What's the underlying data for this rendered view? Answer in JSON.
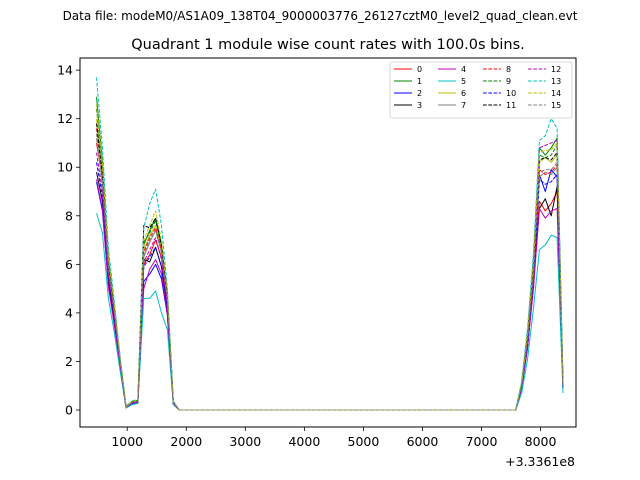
{
  "chart_data": {
    "type": "line",
    "suptitle": "Data file: modeM0/AS1A09_138T04_9000003776_26127cztM0_level2_quad_clean.evt",
    "title": "Quadrant 1 module wise count rates with 100.0s bins.",
    "xlabel": "",
    "ylabel": "",
    "x_offset_label": "+3.3361e8",
    "xlim": [
      200,
      8600
    ],
    "ylim": [
      -0.7,
      14.5
    ],
    "xticks": [
      1000,
      2000,
      3000,
      4000,
      5000,
      6000,
      7000,
      8000
    ],
    "yticks": [
      0,
      2,
      4,
      6,
      8,
      10,
      12,
      14
    ],
    "grid": false,
    "legend_placement": "upper-right",
    "legend_columns": 4,
    "x": [
      480,
      580,
      680,
      780,
      880,
      980,
      1080,
      1180,
      1280,
      1380,
      1480,
      1580,
      1680,
      1780,
      1880,
      7580,
      7680,
      7780,
      7880,
      7980,
      8080,
      8180,
      8280,
      8380
    ],
    "series": [
      {
        "name": "0",
        "color": "#ff0000",
        "dash": "solid",
        "values": [
          11.0,
          9.5,
          6.0,
          4.0,
          2.0,
          0.1,
          0.3,
          0.35,
          6.0,
          6.4,
          7.0,
          6.3,
          4.4,
          0.3,
          0,
          0,
          1.0,
          2.8,
          5.3,
          8.6,
          8.2,
          8.5,
          9.0,
          1.0
        ]
      },
      {
        "name": "1",
        "color": "#008000",
        "dash": "solid",
        "values": [
          12.9,
          10.2,
          6.3,
          4.3,
          2.1,
          0.15,
          0.35,
          0.4,
          6.8,
          7.4,
          7.9,
          6.8,
          4.8,
          0.35,
          0,
          0,
          1.1,
          3.2,
          6.2,
          10.8,
          10.5,
          10.8,
          11.2,
          1.2
        ]
      },
      {
        "name": "2",
        "color": "#0000ff",
        "dash": "solid",
        "values": [
          9.4,
          8.2,
          5.2,
          3.6,
          1.8,
          0.1,
          0.25,
          0.3,
          5.3,
          5.6,
          6.0,
          5.4,
          3.9,
          0.25,
          0,
          0,
          0.9,
          2.6,
          5.3,
          9.7,
          9.0,
          9.9,
          9.6,
          0.9
        ]
      },
      {
        "name": "3",
        "color": "#000000",
        "dash": "solid",
        "values": [
          9.8,
          8.6,
          5.4,
          3.7,
          1.9,
          0.1,
          0.28,
          0.32,
          6.2,
          6.1,
          6.7,
          5.9,
          4.1,
          0.28,
          0,
          0,
          0.95,
          2.6,
          5.2,
          8.3,
          8.7,
          8.0,
          9.2,
          0.95
        ]
      },
      {
        "name": "4",
        "color": "#c000c0",
        "dash": "solid",
        "values": [
          9.5,
          8.3,
          5.1,
          3.5,
          1.8,
          0.1,
          0.25,
          0.3,
          5.0,
          5.8,
          6.2,
          5.6,
          3.9,
          0.25,
          0,
          0,
          0.9,
          2.6,
          5.0,
          8.3,
          7.9,
          8.2,
          8.3,
          0.9
        ]
      },
      {
        "name": "5",
        "color": "#00bfbf",
        "dash": "solid",
        "values": [
          8.1,
          7.3,
          4.6,
          3.2,
          1.6,
          0.08,
          0.22,
          0.27,
          4.6,
          4.6,
          4.9,
          4.0,
          3.3,
          0.22,
          0,
          0,
          0.7,
          2.1,
          4.2,
          6.6,
          6.8,
          7.2,
          7.1,
          0.7
        ]
      },
      {
        "name": "6",
        "color": "#bfbf00",
        "dash": "solid",
        "values": [
          12.0,
          9.8,
          6.1,
          4.2,
          2.1,
          0.12,
          0.33,
          0.37,
          6.6,
          7.2,
          7.6,
          6.7,
          4.6,
          0.33,
          0,
          0,
          1.05,
          3.0,
          5.9,
          10.2,
          10.4,
          10.2,
          10.5,
          1.05
        ]
      },
      {
        "name": "7",
        "color": "#808080",
        "dash": "solid",
        "values": [
          11.2,
          9.3,
          5.8,
          4.0,
          2.0,
          0.11,
          0.3,
          0.35,
          6.3,
          6.9,
          7.4,
          6.5,
          4.5,
          0.3,
          0,
          0,
          1.0,
          2.9,
          5.6,
          9.6,
          9.8,
          9.7,
          10.0,
          1.0
        ]
      },
      {
        "name": "8",
        "color": "#ff0000",
        "dash": "dashed",
        "values": [
          11.6,
          9.7,
          6.0,
          4.1,
          2.0,
          0.11,
          0.31,
          0.36,
          6.5,
          7.1,
          7.5,
          6.6,
          4.6,
          0.31,
          0,
          0,
          1.0,
          2.9,
          5.7,
          9.9,
          9.7,
          9.8,
          10.1,
          1.0
        ]
      },
      {
        "name": "9",
        "color": "#008000",
        "dash": "dashed",
        "values": [
          12.4,
          10.0,
          6.2,
          4.2,
          2.1,
          0.12,
          0.34,
          0.39,
          6.9,
          7.3,
          7.8,
          6.8,
          4.7,
          0.34,
          0,
          0,
          1.1,
          3.1,
          6.0,
          10.5,
          10.4,
          10.5,
          10.9,
          1.1
        ]
      },
      {
        "name": "10",
        "color": "#0000ff",
        "dash": "dashed",
        "values": [
          10.2,
          8.8,
          5.5,
          3.8,
          1.9,
          0.1,
          0.28,
          0.32,
          5.9,
          6.3,
          6.7,
          5.9,
          4.2,
          0.28,
          0,
          0,
          0.95,
          2.7,
          5.4,
          9.5,
          9.3,
          9.4,
          9.7,
          0.95
        ]
      },
      {
        "name": "11",
        "color": "#000000",
        "dash": "dashed",
        "values": [
          11.8,
          9.6,
          6.0,
          4.1,
          2.0,
          0.11,
          0.32,
          0.36,
          7.6,
          7.5,
          7.9,
          6.8,
          4.6,
          0.32,
          0,
          0,
          1.05,
          3.0,
          5.8,
          10.3,
          10.4,
          10.3,
          10.6,
          1.05
        ]
      },
      {
        "name": "12",
        "color": "#c000c0",
        "dash": "dashed",
        "values": [
          10.6,
          9.0,
          5.6,
          3.9,
          1.9,
          0.1,
          0.29,
          0.33,
          6.1,
          6.6,
          7.1,
          6.2,
          4.3,
          0.29,
          0,
          0,
          1.0,
          2.8,
          5.5,
          10.8,
          10.9,
          11.0,
          11.1,
          1.0
        ]
      },
      {
        "name": "13",
        "color": "#00bfbf",
        "dash": "dashed",
        "values": [
          13.7,
          10.8,
          6.7,
          4.5,
          2.2,
          0.14,
          0.38,
          0.42,
          7.5,
          8.5,
          9.1,
          7.6,
          5.0,
          0.38,
          0,
          0,
          1.2,
          3.4,
          6.5,
          11.1,
          11.3,
          12.0,
          11.6,
          1.2
        ]
      },
      {
        "name": "14",
        "color": "#bfbf00",
        "dash": "dashed",
        "values": [
          12.6,
          10.1,
          6.3,
          4.3,
          2.1,
          0.13,
          0.35,
          0.4,
          7.0,
          7.6,
          8.2,
          7.0,
          4.8,
          0.35,
          0,
          0,
          1.1,
          3.2,
          6.1,
          10.6,
          10.7,
          10.7,
          11.0,
          1.1
        ]
      },
      {
        "name": "15",
        "color": "#808080",
        "dash": "dashed",
        "values": [
          11.4,
          9.4,
          5.9,
          4.0,
          2.0,
          0.11,
          0.31,
          0.35,
          6.4,
          7.0,
          7.4,
          6.5,
          4.5,
          0.31,
          0,
          0,
          1.0,
          2.9,
          5.6,
          9.8,
          9.9,
          9.9,
          10.2,
          1.0
        ]
      }
    ]
  }
}
